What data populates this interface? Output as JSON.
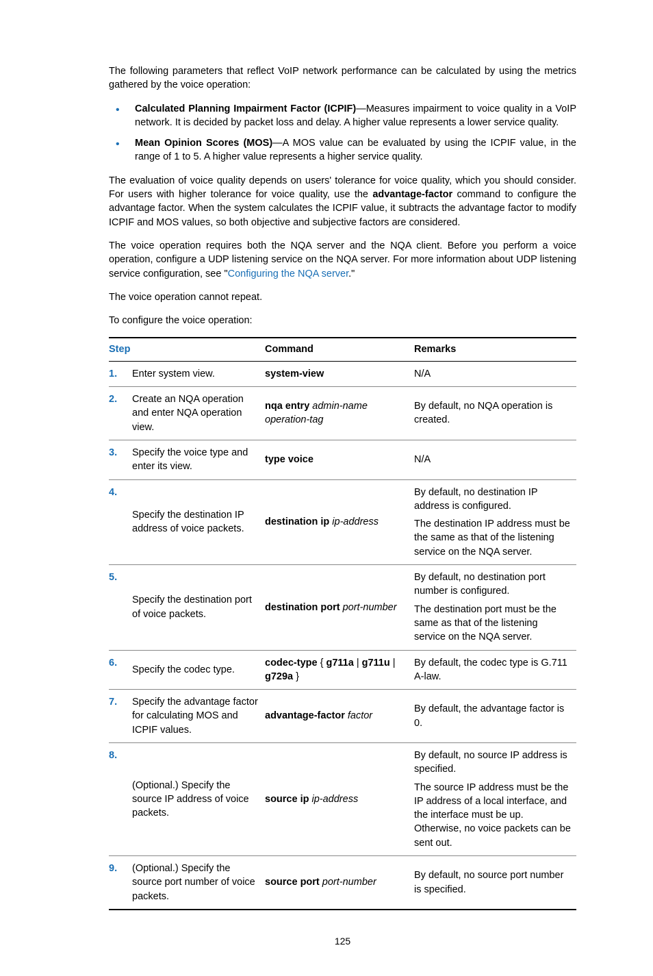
{
  "intro": "The following parameters that reflect VoIP network performance can be calculated by using the metrics gathered by the voice operation:",
  "bullets": [
    {
      "bold": "Calculated Planning Impairment Factor (ICPIF)",
      "rest": "—Measures impairment to voice quality in a VoIP network. It is decided by packet loss and delay. A higher value represents a lower service quality."
    },
    {
      "bold": "Mean Opinion Scores (MOS)",
      "rest": "—A MOS value can be evaluated by using the ICPIF value, in the range of 1 to 5. A higher value represents a higher service quality."
    }
  ],
  "para2_a": "The evaluation of voice quality depends on users' tolerance for voice quality, which you should consider. For users with higher tolerance for voice quality, use the ",
  "para2_bold": "advantage-factor",
  "para2_b": " command to configure the advantage factor. When the system calculates the ICPIF value, it subtracts the advantage factor to modify ICPIF and MOS values, so both objective and subjective factors are considered.",
  "para3_a": "The voice operation requires both the NQA server and the NQA client. Before you perform a voice operation, configure a UDP listening service on the NQA server. For more information about UDP listening service configuration, see \"",
  "para3_link": "Configuring the NQA server",
  "para3_b": ".\"",
  "para4": "The voice operation cannot repeat.",
  "para5": "To configure the voice operation:",
  "headers": {
    "step": "Step",
    "command": "Command",
    "remarks": "Remarks"
  },
  "rows": [
    {
      "num": "1.",
      "step": "Enter system view.",
      "cmd_bold": "system-view",
      "cmd_italic": "",
      "remarks": [
        "N/A"
      ]
    },
    {
      "num": "2.",
      "step": "Create an NQA operation and enter NQA operation view.",
      "cmd_bold": "nqa entry",
      "cmd_italic": " admin-name operation-tag",
      "remarks": [
        "By default, no NQA operation is created."
      ]
    },
    {
      "num": "3.",
      "step": "Specify the voice type and enter its view.",
      "cmd_bold": "type voice",
      "cmd_italic": "",
      "remarks": [
        "N/A"
      ]
    },
    {
      "num": "4.",
      "step": "Specify the destination IP address of voice packets.",
      "cmd_bold": "destination ip",
      "cmd_italic": " ip-address",
      "remarks": [
        "By default, no destination IP address is configured.",
        "The destination IP address must be the same as that of the listening service on the NQA server."
      ]
    },
    {
      "num": "5.",
      "step": "Specify the destination port of voice packets.",
      "cmd_bold": "destination port",
      "cmd_italic": " port-number",
      "remarks": [
        "By default, no destination port number is configured.",
        "The destination port must be the same as that of the listening service on the NQA server."
      ]
    },
    {
      "num": "6.",
      "step": "Specify the codec type.",
      "cmd_bold": "codec-type",
      "cmd_rest": " { g711a | g711u | g729a }",
      "remarks": [
        "By default, the codec type is G.711 A-law."
      ]
    },
    {
      "num": "7.",
      "step": "Specify the advantage factor for calculating MOS and ICPIF values.",
      "cmd_bold": "advantage-factor",
      "cmd_italic": " factor",
      "remarks": [
        "By default, the advantage factor is 0."
      ]
    },
    {
      "num": "8.",
      "step": "(Optional.) Specify the source IP address of voice packets.",
      "cmd_bold": "source ip",
      "cmd_italic": " ip-address",
      "remarks": [
        "By default, no source IP address is specified.",
        "The source IP address must be the IP address of a local interface, and the interface must be up. Otherwise, no voice packets can be sent out."
      ]
    },
    {
      "num": "9.",
      "step": "(Optional.) Specify the source port number of voice packets.",
      "cmd_bold": "source port",
      "cmd_italic": " port-number",
      "remarks": [
        "By default, no source port number is specified."
      ]
    }
  ],
  "page_number": "125"
}
